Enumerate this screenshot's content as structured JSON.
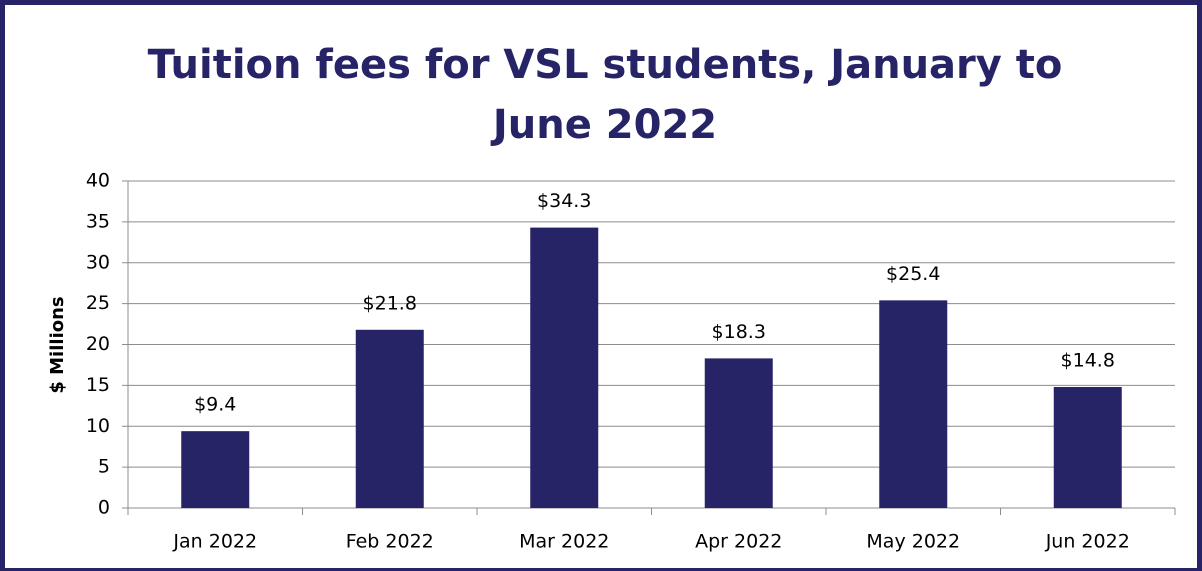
{
  "chart_data": {
    "type": "bar",
    "title": "Tuition fees for VSL students, January to June 2022",
    "y_label": "$ Millions",
    "categories": [
      "Jan 2022",
      "Feb 2022",
      "Mar 2022",
      "Apr 2022",
      "May 2022",
      "Jun 2022"
    ],
    "values": [
      9.4,
      21.8,
      34.3,
      18.3,
      25.4,
      14.8
    ],
    "value_labels": [
      "$9.4",
      "$21.8",
      "$34.3",
      "$18.3",
      "$25.4",
      "$14.8"
    ],
    "color": "#262467",
    "ylim": [
      0,
      40
    ],
    "yticks": [
      0,
      5,
      10,
      15,
      20,
      25,
      30,
      35,
      40
    ],
    "grid": true
  }
}
